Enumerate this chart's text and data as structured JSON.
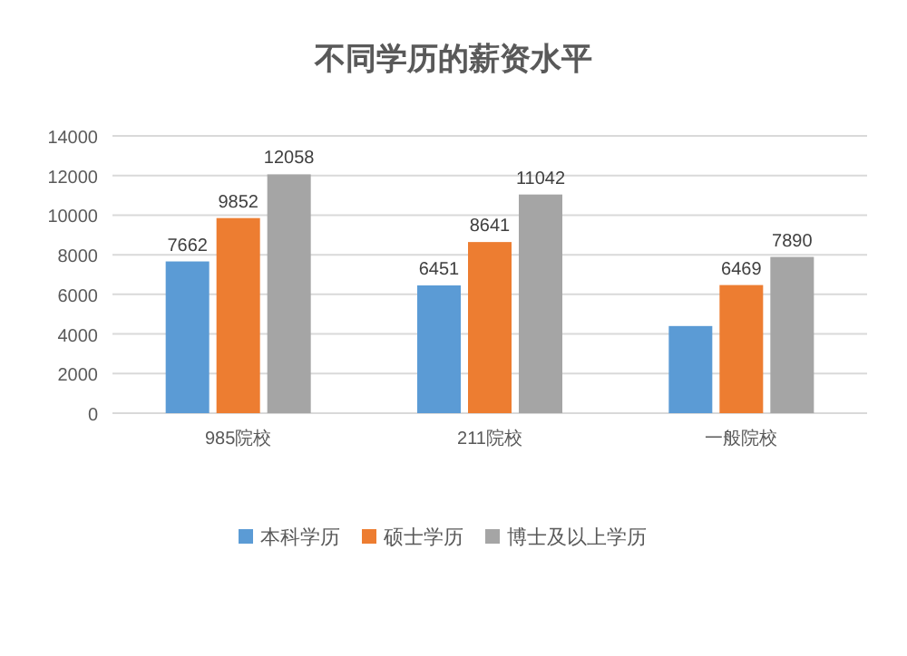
{
  "chart_data": {
    "type": "bar",
    "title": "不同学历的薪资水平",
    "categories": [
      "985院校",
      "211院校",
      "一般院校"
    ],
    "series": [
      {
        "name": "本科学历",
        "color": "#5b9bd5",
        "values": [
          7662,
          6451,
          4400
        ],
        "value_labels": [
          "7662",
          "6451",
          null
        ]
      },
      {
        "name": "硕士学历",
        "color": "#ed7d31",
        "values": [
          9852,
          8641,
          6469
        ],
        "value_labels": [
          "9852",
          "8641",
          "6469"
        ]
      },
      {
        "name": "博士及以上学历",
        "color": "#a5a5a5",
        "values": [
          12058,
          11042,
          7890
        ],
        "value_labels": [
          "12058",
          "11042",
          "7890"
        ]
      }
    ],
    "ylim": [
      0,
      14000
    ],
    "yticks": [
      0,
      2000,
      4000,
      6000,
      8000,
      10000,
      12000,
      14000
    ],
    "grid": "y",
    "legend": "bottom"
  }
}
